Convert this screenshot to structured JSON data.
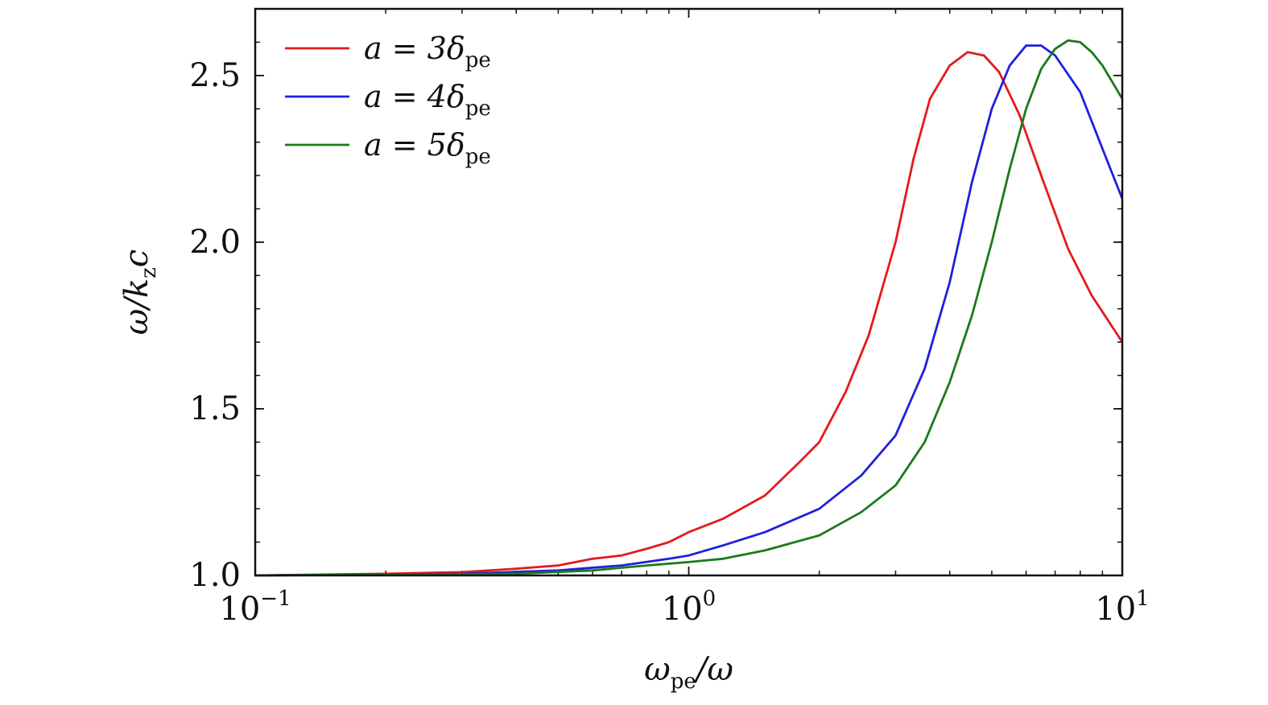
{
  "chart_data": {
    "type": "line",
    "xscale": "log",
    "xlim": [
      0.1,
      10
    ],
    "ylim": [
      1.0,
      2.7
    ],
    "xticks": [
      {
        "value": 0.1,
        "base": "10",
        "exp": "−1"
      },
      {
        "value": 1,
        "base": "10",
        "exp": "0"
      },
      {
        "value": 10,
        "base": "10",
        "exp": "1"
      }
    ],
    "yticks": [
      {
        "value": 1.0,
        "label": "1.0"
      },
      {
        "value": 1.5,
        "label": "1.5"
      },
      {
        "value": 2.0,
        "label": "2.0"
      },
      {
        "value": 2.5,
        "label": "2.5"
      }
    ],
    "xlabel": {
      "main": "ω",
      "sub": "pe",
      "tail": "/ω"
    },
    "ylabel": {
      "main": "ω/k",
      "sub": "z",
      "tail": "c"
    },
    "grid": false,
    "legend_position": "top-left",
    "series": [
      {
        "name": "a = 3δpe",
        "legend": {
          "pre": "a = 3δ",
          "sub": "pe"
        },
        "color": "#e41a1c",
        "points": [
          [
            0.1,
            1.0
          ],
          [
            0.2,
            1.005
          ],
          [
            0.3,
            1.01
          ],
          [
            0.4,
            1.02
          ],
          [
            0.5,
            1.03
          ],
          [
            0.6,
            1.05
          ],
          [
            0.7,
            1.06
          ],
          [
            0.8,
            1.08
          ],
          [
            0.9,
            1.1
          ],
          [
            1.0,
            1.13
          ],
          [
            1.2,
            1.17
          ],
          [
            1.5,
            1.24
          ],
          [
            1.8,
            1.34
          ],
          [
            2.0,
            1.4
          ],
          [
            2.3,
            1.55
          ],
          [
            2.6,
            1.72
          ],
          [
            3.0,
            2.0
          ],
          [
            3.3,
            2.25
          ],
          [
            3.6,
            2.43
          ],
          [
            4.0,
            2.53
          ],
          [
            4.4,
            2.57
          ],
          [
            4.8,
            2.56
          ],
          [
            5.2,
            2.51
          ],
          [
            5.8,
            2.38
          ],
          [
            6.5,
            2.2
          ],
          [
            7.5,
            1.98
          ],
          [
            8.5,
            1.84
          ],
          [
            10,
            1.7
          ]
        ]
      },
      {
        "name": "a = 4δpe",
        "legend": {
          "pre": "a = 4δ",
          "sub": "pe"
        },
        "color": "#1f1fe0",
        "points": [
          [
            0.1,
            1.0
          ],
          [
            0.3,
            1.005
          ],
          [
            0.5,
            1.015
          ],
          [
            0.7,
            1.03
          ],
          [
            0.9,
            1.05
          ],
          [
            1.0,
            1.06
          ],
          [
            1.2,
            1.09
          ],
          [
            1.5,
            1.13
          ],
          [
            2.0,
            1.2
          ],
          [
            2.5,
            1.3
          ],
          [
            3.0,
            1.42
          ],
          [
            3.5,
            1.62
          ],
          [
            4.0,
            1.88
          ],
          [
            4.5,
            2.18
          ],
          [
            5.0,
            2.4
          ],
          [
            5.5,
            2.53
          ],
          [
            6.0,
            2.59
          ],
          [
            6.5,
            2.59
          ],
          [
            7.0,
            2.56
          ],
          [
            8.0,
            2.45
          ],
          [
            9.0,
            2.28
          ],
          [
            10,
            2.13
          ]
        ]
      },
      {
        "name": "a = 5δpe",
        "legend": {
          "pre": "a = 5δ",
          "sub": "pe"
        },
        "color": "#1a7a1a",
        "points": [
          [
            0.1,
            1.0
          ],
          [
            0.4,
            1.005
          ],
          [
            0.6,
            1.015
          ],
          [
            0.8,
            1.03
          ],
          [
            1.0,
            1.04
          ],
          [
            1.2,
            1.05
          ],
          [
            1.5,
            1.075
          ],
          [
            2.0,
            1.12
          ],
          [
            2.5,
            1.19
          ],
          [
            3.0,
            1.27
          ],
          [
            3.5,
            1.4
          ],
          [
            4.0,
            1.58
          ],
          [
            4.5,
            1.78
          ],
          [
            5.0,
            2.0
          ],
          [
            5.5,
            2.22
          ],
          [
            6.0,
            2.4
          ],
          [
            6.5,
            2.52
          ],
          [
            7.0,
            2.58
          ],
          [
            7.5,
            2.605
          ],
          [
            8.0,
            2.6
          ],
          [
            8.5,
            2.57
          ],
          [
            9.0,
            2.53
          ],
          [
            10,
            2.43
          ]
        ]
      }
    ]
  }
}
